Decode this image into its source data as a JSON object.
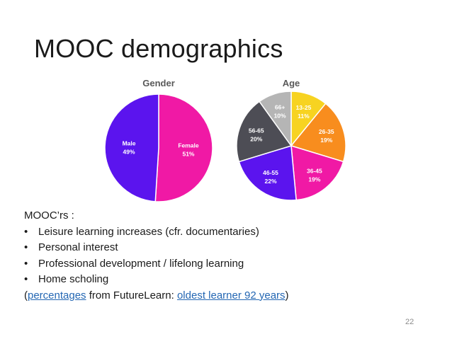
{
  "slide": {
    "title": "MOOC demographics",
    "heading": "MOOC’rs :",
    "bullets": [
      "Leisure learning increases (cfr. documentaries)",
      "Personal interest",
      "Professional development / lifelong learning",
      "Home scholing"
    ],
    "bullet_glyph": "•",
    "source": {
      "open_paren": "(",
      "link1": "percentages",
      "mid": " from FutureLearn: ",
      "link2": "oldest learner 92 years",
      "close_paren": ")"
    },
    "page_number": "22"
  },
  "chart_data": [
    {
      "type": "pie",
      "title": "Gender",
      "slices": [
        {
          "label": "Female",
          "value": 51,
          "pct_label": "51%",
          "color": "#f019a5",
          "text_color": "#ffffff"
        },
        {
          "label": "Male",
          "value": 49,
          "pct_label": "49%",
          "color": "#5b14ee",
          "text_color": "#ffffff"
        }
      ]
    },
    {
      "type": "pie",
      "title": "Age",
      "slices": [
        {
          "label": "13-25",
          "value": 11,
          "pct_label": "11%",
          "color": "#f7d321",
          "text_color": "#ffffff"
        },
        {
          "label": "26-35",
          "value": 19,
          "pct_label": "19%",
          "color": "#f88d1e",
          "text_color": "#ffffff"
        },
        {
          "label": "36-45",
          "value": 19,
          "pct_label": "19%",
          "color": "#f019a5",
          "text_color": "#ffffff"
        },
        {
          "label": "46-55",
          "value": 22,
          "pct_label": "22%",
          "color": "#5b14ee",
          "text_color": "#ffffff"
        },
        {
          "label": "56-65",
          "value": 20,
          "pct_label": "20%",
          "color": "#4d4d55",
          "text_color": "#ffffff"
        },
        {
          "label": "66+",
          "value": 10,
          "pct_label": "10%",
          "color": "#b5b5b5",
          "text_color": "#ffffff"
        }
      ]
    }
  ]
}
